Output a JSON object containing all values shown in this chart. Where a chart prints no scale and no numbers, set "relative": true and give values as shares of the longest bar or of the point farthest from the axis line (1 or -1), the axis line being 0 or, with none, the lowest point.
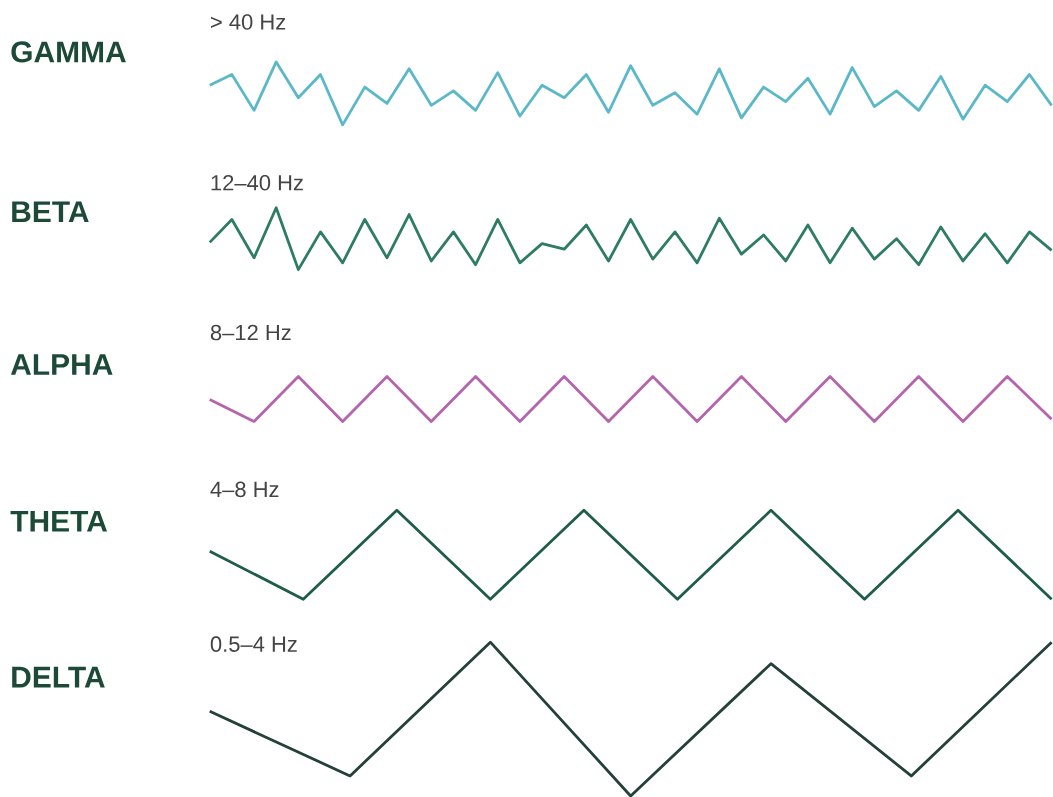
{
  "chart_data": [
    {
      "type": "line",
      "title": "GAMMA",
      "subtitle": "> 40 Hz",
      "relative": true,
      "color": "#5bb8c8",
      "categories": [
        null,
        null,
        null,
        null,
        null,
        null,
        null,
        null,
        null,
        null,
        null,
        null,
        null,
        null,
        null,
        null,
        null,
        null,
        null,
        null,
        null,
        null,
        null,
        null,
        null,
        null,
        null,
        null,
        null,
        null,
        null,
        null,
        null,
        null,
        null,
        null,
        null,
        null,
        null
      ],
      "values": [
        0.63,
        0.8,
        0.23,
        1,
        0.43,
        0.8,
        0,
        0.6,
        0.34,
        0.89,
        0.31,
        0.54,
        0.23,
        0.83,
        0.14,
        0.63,
        0.43,
        0.8,
        0.2,
        0.94,
        0.31,
        0.51,
        0.17,
        0.89,
        0.11,
        0.6,
        0.37,
        0.74,
        0.17,
        0.91,
        0.29,
        0.54,
        0.23,
        0.77,
        0.09,
        0.63,
        0.37,
        0.8,
        0.31
      ]
    },
    {
      "type": "line",
      "title": "BETA",
      "subtitle": "12–40 Hz",
      "relative": true,
      "color": "#2e7d63",
      "categories": [
        null,
        null,
        null,
        null,
        null,
        null,
        null,
        null,
        null,
        null,
        null,
        null,
        null,
        null,
        null,
        null,
        null,
        null,
        null,
        null,
        null,
        null,
        null,
        null,
        null,
        null,
        null,
        null,
        null,
        null,
        null,
        null,
        null,
        null,
        null,
        null,
        null,
        null,
        null
      ],
      "values": [
        0.44,
        0.81,
        0.19,
        1,
        0,
        0.61,
        0.11,
        0.81,
        0.19,
        0.89,
        0.14,
        0.61,
        0.08,
        0.81,
        0.11,
        0.42,
        0.33,
        0.72,
        0.14,
        0.81,
        0.17,
        0.61,
        0.11,
        0.83,
        0.25,
        0.56,
        0.14,
        0.72,
        0.11,
        0.67,
        0.17,
        0.5,
        0.08,
        0.69,
        0.14,
        0.58,
        0.11,
        0.61,
        0.31
      ]
    },
    {
      "type": "line",
      "title": "ALPHA",
      "subtitle": "8–12 Hz",
      "relative": true,
      "color": "#b565ad",
      "categories": [
        null,
        null,
        null,
        null,
        null,
        null,
        null,
        null,
        null,
        null,
        null,
        null,
        null,
        null,
        null,
        null,
        null,
        null,
        null,
        null
      ],
      "values": [
        0.49,
        0,
        1,
        0,
        1,
        0,
        1,
        0,
        1,
        0,
        1,
        0,
        1,
        0,
        1,
        0,
        1,
        0,
        1,
        0.05
      ]
    },
    {
      "type": "line",
      "title": "THETA",
      "subtitle": "4–8 Hz",
      "relative": true,
      "color": "#1f5c4a",
      "categories": [
        null,
        null,
        null,
        null,
        null,
        null,
        null,
        null,
        null,
        null
      ],
      "values": [
        0.54,
        0,
        1,
        0,
        1,
        0,
        1,
        0,
        1,
        0
      ]
    },
    {
      "type": "line",
      "title": "DELTA",
      "subtitle": "0.5–4 Hz",
      "relative": true,
      "color": "#24403a",
      "categories": [
        null,
        null,
        null,
        null,
        null,
        null,
        null
      ],
      "values": [
        0.55,
        0.13,
        1,
        0,
        0.86,
        0.13,
        1
      ]
    }
  ]
}
